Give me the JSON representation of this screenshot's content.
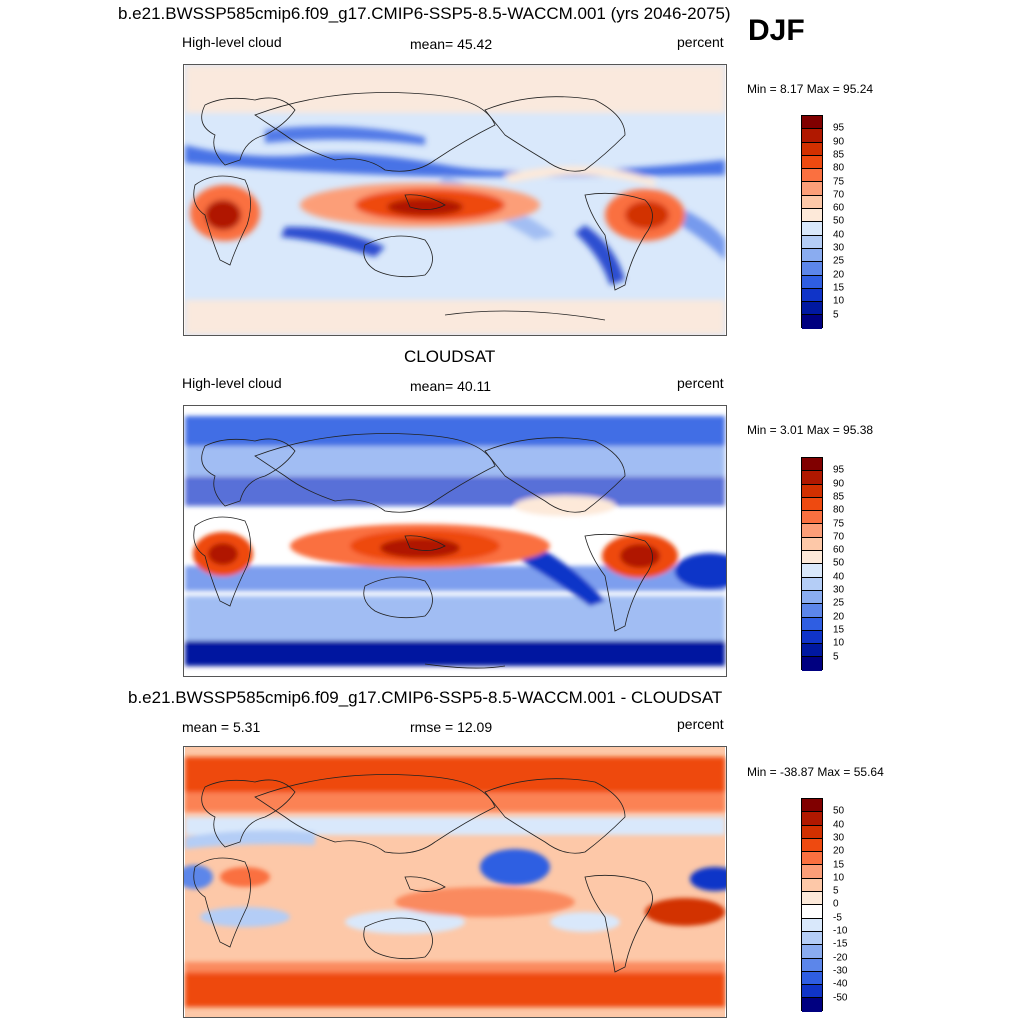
{
  "season": "DJF",
  "panels": [
    {
      "title": "b.e21.BWSSP585cmip6.f09_g17.CMIP6-SSP5-8.5-WACCM.001 (yrs 2046-2075)",
      "left": "High-level cloud",
      "center": "mean=  45.42",
      "right": "percent",
      "minmax": "Min =   8.17 Max =  95.24",
      "palette": "full",
      "colorbar_labels": [
        "95",
        "90",
        "85",
        "80",
        "75",
        "70",
        "60",
        "50",
        "40",
        "30",
        "25",
        "20",
        "15",
        "10",
        "5"
      ]
    },
    {
      "title": "CLOUDSAT",
      "left": "High-level cloud",
      "center": "mean=  40.11",
      "right": "percent",
      "minmax": "Min =   3.01 Max =  95.38",
      "palette": "full",
      "colorbar_labels": [
        "95",
        "90",
        "85",
        "80",
        "75",
        "70",
        "60",
        "50",
        "40",
        "30",
        "25",
        "20",
        "15",
        "10",
        "5"
      ]
    },
    {
      "title": "b.e21.BWSSP585cmip6.f09_g17.CMIP6-SSP5-8.5-WACCM.001 - CLOUDSAT",
      "left": "mean =   5.31",
      "center": "rmse =  12.09",
      "right": "percent",
      "minmax": "Min = -38.87 Max =  55.64",
      "palette": "diff",
      "colorbar_labels": [
        "50",
        "40",
        "30",
        "20",
        "15",
        "10",
        "5",
        "0",
        "-5",
        "-10",
        "-15",
        "-20",
        "-30",
        "-40",
        "-50"
      ]
    }
  ],
  "colors": {
    "full": [
      "#800000",
      "#b01800",
      "#d23000",
      "#ee4a10",
      "#fa7040",
      "#fc9e78",
      "#fdc8a8",
      "#fde9d9",
      "#d9e8fb",
      "#b4cdf6",
      "#8aacf0",
      "#5c86ea",
      "#2f5ee2",
      "#1034c8",
      "#0018a0",
      "#000080"
    ],
    "diff": [
      "#800000",
      "#b01800",
      "#d23000",
      "#ee4a10",
      "#fa7040",
      "#fc9e78",
      "#fdc8a8",
      "#fde9d9",
      "#ffffff",
      "#d9e8fb",
      "#b4cdf6",
      "#8aacf0",
      "#5c86ea",
      "#2f5ee2",
      "#1034c8",
      "#000080"
    ]
  }
}
